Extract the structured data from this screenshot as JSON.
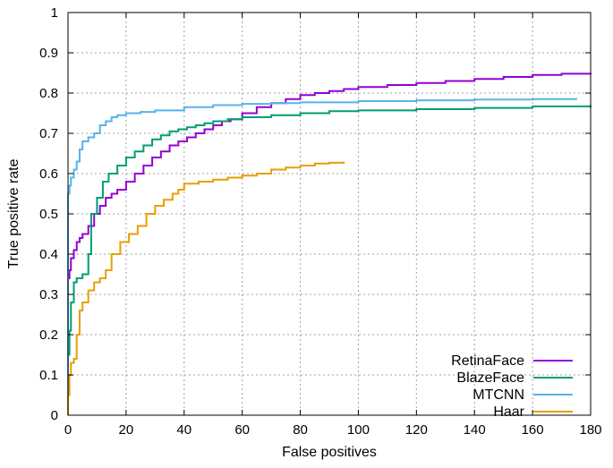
{
  "chart_data": {
    "type": "line",
    "title": "",
    "xlabel": "False positives",
    "ylabel": "True positive rate",
    "xlim": [
      0,
      180
    ],
    "ylim": [
      0,
      1
    ],
    "x_ticks": [
      0,
      20,
      40,
      60,
      80,
      100,
      120,
      140,
      160,
      180
    ],
    "y_ticks": [
      0,
      0.1,
      0.2,
      0.3,
      0.4,
      0.5,
      0.6,
      0.7,
      0.8,
      0.9,
      1
    ],
    "x_tick_labels": [
      "0",
      "20",
      "40",
      "60",
      "80",
      "100",
      "120",
      "140",
      "160",
      "180"
    ],
    "y_tick_labels": [
      "0",
      "0.1",
      "0.2",
      "0.3",
      "0.4",
      "0.5",
      "0.6",
      "0.7",
      "0.8",
      "0.9",
      "1"
    ],
    "grid": true,
    "legend_position": "bottom-right",
    "series": [
      {
        "name": "RetinaFace",
        "color": "#9400d3",
        "x": [
          0,
          0.5,
          1,
          2,
          3,
          4,
          5,
          7,
          9,
          11,
          13,
          15,
          17,
          20,
          23,
          26,
          29,
          32,
          35,
          38,
          41,
          44,
          47,
          50,
          53,
          56,
          60,
          65,
          70,
          75,
          80,
          85,
          90,
          95,
          100,
          110,
          120,
          130,
          140,
          150,
          160,
          170,
          180
        ],
        "y": [
          0.34,
          0.36,
          0.39,
          0.41,
          0.43,
          0.44,
          0.45,
          0.47,
          0.5,
          0.52,
          0.54,
          0.55,
          0.56,
          0.58,
          0.6,
          0.62,
          0.64,
          0.655,
          0.67,
          0.68,
          0.69,
          0.7,
          0.71,
          0.72,
          0.73,
          0.735,
          0.75,
          0.765,
          0.775,
          0.785,
          0.795,
          0.8,
          0.805,
          0.81,
          0.815,
          0.82,
          0.825,
          0.83,
          0.835,
          0.84,
          0.845,
          0.848,
          0.85
        ]
      },
      {
        "name": "BlazeFace",
        "color": "#009e73",
        "x": [
          0,
          0.5,
          1,
          2,
          3,
          5,
          7,
          8,
          10,
          12,
          14,
          17,
          20,
          23,
          26,
          29,
          32,
          35,
          38,
          41,
          44,
          47,
          50,
          55,
          60,
          70,
          80,
          90,
          100,
          120,
          140,
          160,
          180
        ],
        "y": [
          0.15,
          0.21,
          0.28,
          0.33,
          0.34,
          0.35,
          0.4,
          0.5,
          0.54,
          0.58,
          0.6,
          0.62,
          0.64,
          0.655,
          0.67,
          0.685,
          0.695,
          0.705,
          0.71,
          0.715,
          0.72,
          0.725,
          0.73,
          0.735,
          0.74,
          0.745,
          0.75,
          0.755,
          0.757,
          0.76,
          0.763,
          0.767,
          0.77
        ]
      },
      {
        "name": "MTCNN",
        "color": "#56b4e9",
        "x": [
          0,
          0.5,
          1,
          2,
          3,
          4,
          5,
          7,
          9,
          11,
          13,
          15,
          17,
          20,
          25,
          30,
          40,
          50,
          60,
          70,
          80,
          100,
          120,
          140,
          160,
          175
        ],
        "y": [
          0.55,
          0.57,
          0.59,
          0.61,
          0.63,
          0.66,
          0.68,
          0.69,
          0.7,
          0.72,
          0.73,
          0.74,
          0.745,
          0.75,
          0.753,
          0.757,
          0.765,
          0.77,
          0.773,
          0.775,
          0.777,
          0.78,
          0.782,
          0.784,
          0.785,
          0.788
        ]
      },
      {
        "name": "Haar",
        "color": "#e69f00",
        "x": [
          0,
          0.5,
          1,
          2,
          3,
          4,
          5,
          7,
          9,
          11,
          13,
          15,
          18,
          21,
          24,
          27,
          30,
          33,
          36,
          38,
          40,
          45,
          50,
          55,
          60,
          65,
          70,
          75,
          80,
          85,
          90,
          95
        ],
        "y": [
          0.05,
          0.1,
          0.13,
          0.14,
          0.2,
          0.26,
          0.28,
          0.31,
          0.33,
          0.34,
          0.36,
          0.4,
          0.43,
          0.45,
          0.47,
          0.5,
          0.52,
          0.535,
          0.55,
          0.56,
          0.575,
          0.58,
          0.585,
          0.59,
          0.595,
          0.6,
          0.61,
          0.615,
          0.62,
          0.625,
          0.627,
          0.63
        ]
      }
    ]
  }
}
